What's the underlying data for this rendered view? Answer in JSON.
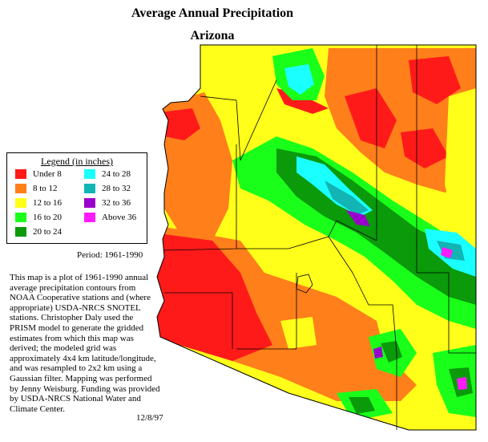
{
  "title": "Average Annual Precipitation",
  "subtitle": "Arizona",
  "legend": {
    "title": "Legend (in inches)",
    "items": [
      {
        "label": "Under 8",
        "color": "#ff1a1a"
      },
      {
        "label": "8 to 12",
        "color": "#ff7f1a"
      },
      {
        "label": "12 to 16",
        "color": "#ffff1a"
      },
      {
        "label": "16 to 20",
        "color": "#1aff1a"
      },
      {
        "label": "20 to 24",
        "color": "#0a9a0a"
      },
      {
        "label": "24 to 28",
        "color": "#1affff"
      },
      {
        "label": "28 to 32",
        "color": "#12b4b4"
      },
      {
        "label": "32 to 36",
        "color": "#9a00cc"
      },
      {
        "label": "Above 36",
        "color": "#ff1aff"
      }
    ]
  },
  "period": "Period: 1961-1990",
  "description": "This map is a plot of 1961-1990 annual average precipitation contours from NOAA Cooperative stations and (where appropriate) USDA-NRCS SNOTEL stations. Christopher Daly used the PRISM model to generate the gridded estimates from which this map was derived; the modeled grid was approximately 4x4 km latitude/longitude, and was resampled to 2x2 km using a Gaussian filter. Mapping was performed by Jenny Weisburg. Funding was provided by USDA-NRCS National Water and Climate Center.",
  "date": "12/8/97"
}
